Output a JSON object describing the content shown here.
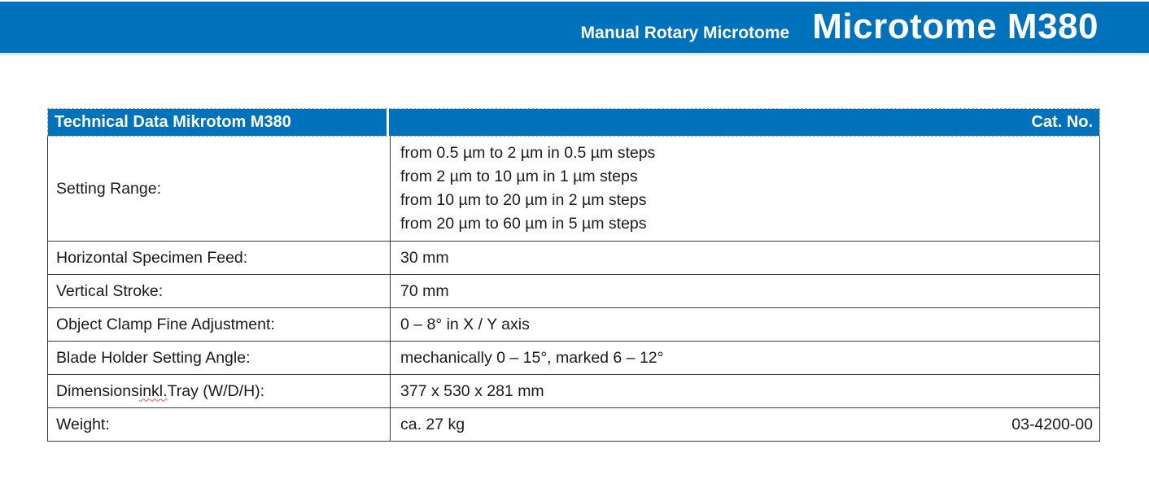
{
  "colors": {
    "brand_blue": "#0072bb",
    "underline_red": "#f4504a"
  },
  "top_bar": {
    "subtitle": "Manual Rotary Microtome",
    "title": "Microtome M380"
  },
  "table": {
    "header": {
      "left": "Technical Data Mikrotom M380",
      "right": "Cat. No."
    },
    "rows": [
      {
        "label": "Setting Range:",
        "values": [
          "from 0.5 µm to 2 µm in 0.5 µm steps",
          "from 2 µm to 10 µm in 1 µm steps",
          "from 10 µm to 20 µm in 2 µm steps",
          "from 20 µm to 60 µm in 5 µm steps"
        ]
      },
      {
        "label": "Horizontal Specimen Feed:",
        "value": "30 mm"
      },
      {
        "label": "Vertical Stroke:",
        "value": "70 mm"
      },
      {
        "label": "Object Clamp Fine Adjustment:",
        "value": "0 – 8° in X / Y axis"
      },
      {
        "label": "Blade Holder Setting Angle:",
        "value": "mechanically 0 – 15°, marked 6 – 12°"
      },
      {
        "label_prefix": "Dimensions ",
        "label_misspelled": "inkl.",
        "label_suffix": " Tray (W/D/H):",
        "value": "377 x 530 x 281 mm"
      },
      {
        "label": "Weight:",
        "value": "ca. 27 kg",
        "cat_no": "03-4200-00"
      }
    ]
  }
}
